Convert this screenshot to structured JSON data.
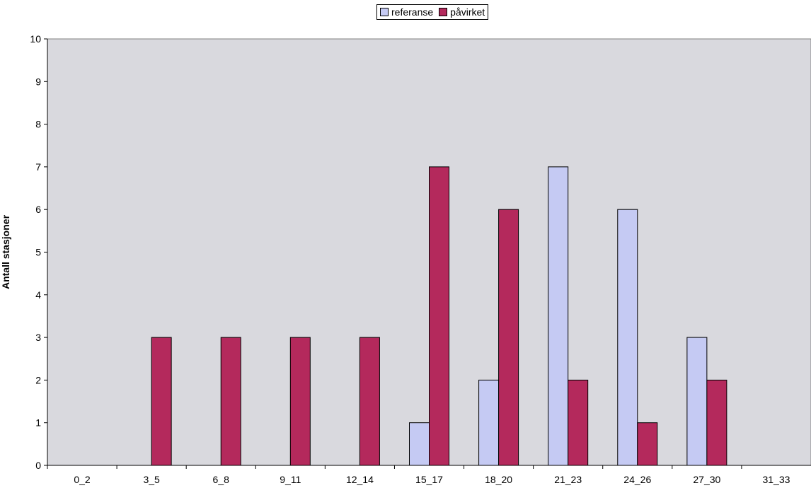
{
  "chart_data": {
    "type": "bar",
    "title": "",
    "xlabel": "",
    "ylabel": "Antall stasjoner",
    "ylim": [
      0,
      10
    ],
    "yticks": [
      0,
      1,
      2,
      3,
      4,
      5,
      6,
      7,
      8,
      9,
      10
    ],
    "grid": false,
    "legend_position": "top-center",
    "categories": [
      "0_2",
      "3_5",
      "6_8",
      "9_11",
      "12_14",
      "15_17",
      "18_20",
      "21_23",
      "24_26",
      "27_30",
      "31_33"
    ],
    "series": [
      {
        "name": "referanse",
        "color": "#c5caf3",
        "values": [
          0,
          0,
          0,
          0,
          0,
          1,
          2,
          7,
          6,
          3,
          0
        ]
      },
      {
        "name": "påvirket",
        "color": "#b4295c",
        "values": [
          0,
          3,
          3,
          3,
          3,
          7,
          6,
          2,
          1,
          2,
          0
        ]
      }
    ],
    "plot_background": "#d9d9de"
  }
}
